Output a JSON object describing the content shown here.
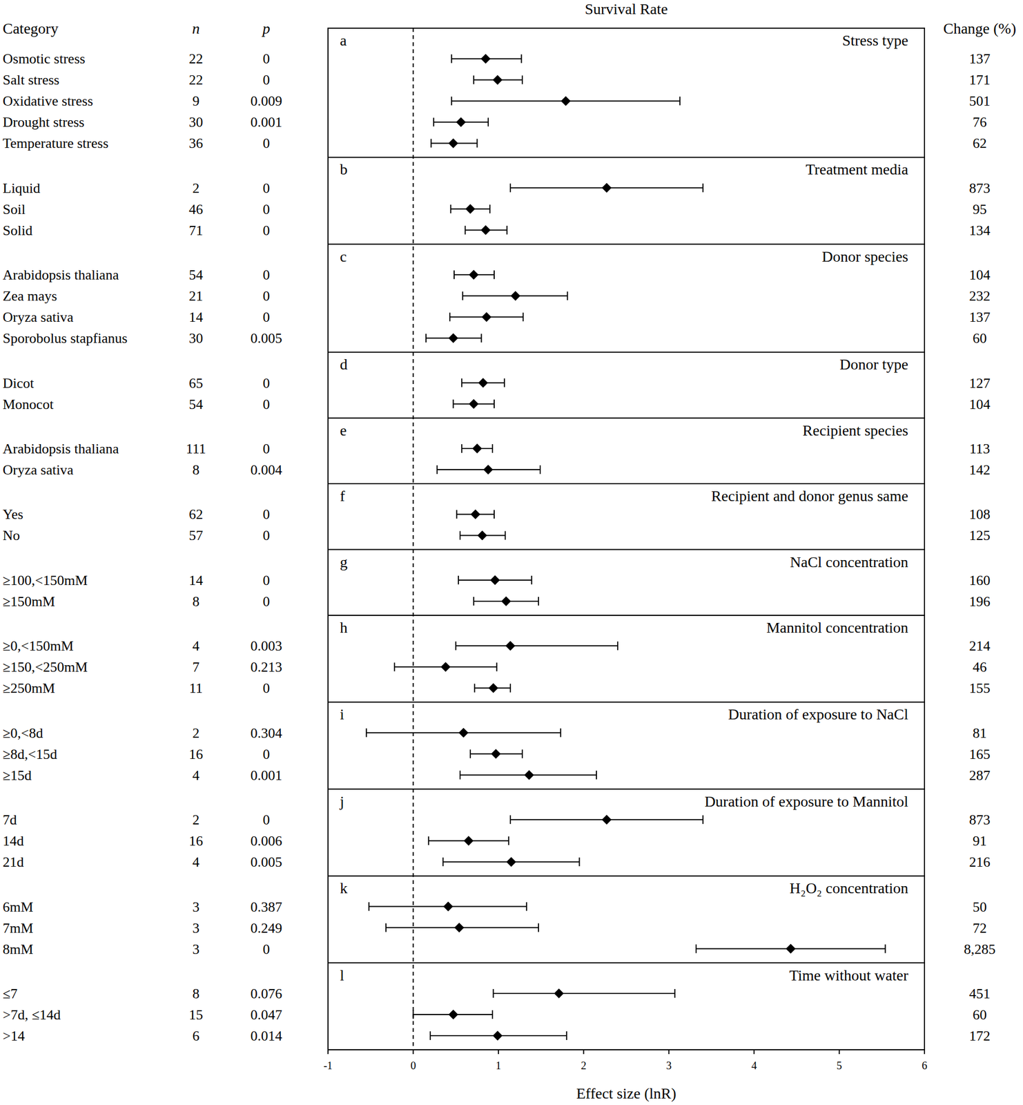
{
  "chart_data": {
    "type": "forest",
    "title": "Survival Rate",
    "x_label": "Effect size (lnR)",
    "columns": {
      "category": "Category",
      "n": "n",
      "p": "p",
      "change": "Change (%)"
    },
    "xlim": [
      -1,
      6
    ],
    "xticks": [
      -1,
      0,
      1,
      2,
      3,
      4,
      5,
      6
    ],
    "reference_line": 0,
    "color": "#000000",
    "marker": "diamond",
    "panels": [
      {
        "letter": "a",
        "title": "Stress type",
        "rows": [
          {
            "category": "Osmotic stress",
            "n": 22,
            "p": 0,
            "value": 0.85,
            "lower": 0.45,
            "upper": 1.27,
            "change": 137
          },
          {
            "category": "Salt stress",
            "n": 22,
            "p": 0,
            "value": 0.99,
            "lower": 0.71,
            "upper": 1.28,
            "change": 171
          },
          {
            "category": "Oxidative stress",
            "n": 9,
            "p": 0.009,
            "value": 1.79,
            "lower": 0.45,
            "upper": 3.13,
            "change": 501
          },
          {
            "category": "Drought stress",
            "n": 30,
            "p": 0.001,
            "value": 0.56,
            "lower": 0.24,
            "upper": 0.88,
            "change": 76
          },
          {
            "category": "Temperature stress",
            "n": 36,
            "p": 0,
            "value": 0.47,
            "lower": 0.21,
            "upper": 0.75,
            "change": 62
          }
        ]
      },
      {
        "letter": "b",
        "title": "Treatment media",
        "rows": [
          {
            "category": "Liquid",
            "n": 2,
            "p": 0,
            "value": 2.27,
            "lower": 1.14,
            "upper": 3.4,
            "change": 873
          },
          {
            "category": "Soil",
            "n": 46,
            "p": 0,
            "value": 0.67,
            "lower": 0.44,
            "upper": 0.9,
            "change": 95
          },
          {
            "category": "Solid",
            "n": 71,
            "p": 0,
            "value": 0.85,
            "lower": 0.61,
            "upper": 1.1,
            "change": 134
          }
        ]
      },
      {
        "letter": "c",
        "title": "Donor species",
        "rows": [
          {
            "category": "Arabidopsis thaliana",
            "n": 54,
            "p": 0,
            "value": 0.71,
            "lower": 0.48,
            "upper": 0.95,
            "change": 104
          },
          {
            "category": "Zea mays",
            "n": 21,
            "p": 0,
            "value": 1.2,
            "lower": 0.58,
            "upper": 1.81,
            "change": 232
          },
          {
            "category": "Oryza sativa",
            "n": 14,
            "p": 0,
            "value": 0.86,
            "lower": 0.43,
            "upper": 1.29,
            "change": 137
          },
          {
            "category": "Sporobolus stapfianus",
            "n": 30,
            "p": 0.005,
            "value": 0.47,
            "lower": 0.15,
            "upper": 0.8,
            "change": 60
          }
        ]
      },
      {
        "letter": "d",
        "title": "Donor type",
        "rows": [
          {
            "category": "Dicot",
            "n": 65,
            "p": 0,
            "value": 0.82,
            "lower": 0.57,
            "upper": 1.07,
            "change": 127
          },
          {
            "category": "Monocot",
            "n": 54,
            "p": 0,
            "value": 0.71,
            "lower": 0.47,
            "upper": 0.95,
            "change": 104
          }
        ]
      },
      {
        "letter": "e",
        "title": "Recipient species",
        "rows": [
          {
            "category": "Arabidopsis thaliana",
            "n": 111,
            "p": 0,
            "value": 0.75,
            "lower": 0.57,
            "upper": 0.93,
            "change": 113
          },
          {
            "category": "Oryza sativa",
            "n": 8,
            "p": 0.004,
            "value": 0.88,
            "lower": 0.28,
            "upper": 1.49,
            "change": 142
          }
        ]
      },
      {
        "letter": "f",
        "title": "Recipient and donor genus same",
        "rows": [
          {
            "category": "Yes",
            "n": 62,
            "p": 0,
            "value": 0.73,
            "lower": 0.51,
            "upper": 0.95,
            "change": 108
          },
          {
            "category": "No",
            "n": 57,
            "p": 0,
            "value": 0.81,
            "lower": 0.55,
            "upper": 1.08,
            "change": 125
          }
        ]
      },
      {
        "letter": "g",
        "title": "NaCl concentration",
        "rows": [
          {
            "category": "≥100,<150mM",
            "n": 14,
            "p": 0,
            "value": 0.96,
            "lower": 0.53,
            "upper": 1.39,
            "change": 160
          },
          {
            "category": "≥150mM",
            "n": 8,
            "p": 0,
            "value": 1.09,
            "lower": 0.71,
            "upper": 1.47,
            "change": 196
          }
        ]
      },
      {
        "letter": "h",
        "title": "Mannitol concentration",
        "rows": [
          {
            "category": "≥0,<150mM",
            "n": 4,
            "p": 0.003,
            "value": 1.14,
            "lower": 0.5,
            "upper": 2.4,
            "change": 214
          },
          {
            "category": "≥150,<250mM",
            "n": 7,
            "p": 0.213,
            "value": 0.38,
            "lower": -0.22,
            "upper": 0.98,
            "change": 46
          },
          {
            "category": "≥250mM",
            "n": 11,
            "p": 0,
            "value": 0.94,
            "lower": 0.72,
            "upper": 1.14,
            "change": 155
          }
        ]
      },
      {
        "letter": "i",
        "title": "Duration of exposure to NaCl",
        "rows": [
          {
            "category": "≥0,<8d",
            "n": 2,
            "p": 0.304,
            "value": 0.59,
            "lower": -0.55,
            "upper": 1.73,
            "change": 81
          },
          {
            "category": "≥8d,<15d",
            "n": 16,
            "p": 0,
            "value": 0.97,
            "lower": 0.67,
            "upper": 1.28,
            "change": 165
          },
          {
            "category": "≥15d",
            "n": 4,
            "p": 0.001,
            "value": 1.36,
            "lower": 0.55,
            "upper": 2.15,
            "change": 287
          }
        ]
      },
      {
        "letter": "j",
        "title": "Duration of exposure to Mannitol",
        "rows": [
          {
            "category": "7d",
            "n": 2,
            "p": 0,
            "value": 2.27,
            "lower": 1.14,
            "upper": 3.4,
            "change": 873
          },
          {
            "category": "14d",
            "n": 16,
            "p": 0.006,
            "value": 0.65,
            "lower": 0.18,
            "upper": 1.12,
            "change": 91
          },
          {
            "category": "21d",
            "n": 4,
            "p": 0.005,
            "value": 1.15,
            "lower": 0.35,
            "upper": 1.95,
            "change": 216
          }
        ]
      },
      {
        "letter": "k",
        "title": "H₂O₂ concentration",
        "rows": [
          {
            "category": "6mM",
            "n": 3,
            "p": 0.387,
            "value": 0.41,
            "lower": -0.52,
            "upper": 1.33,
            "change": 50
          },
          {
            "category": "7mM",
            "n": 3,
            "p": 0.249,
            "value": 0.54,
            "lower": -0.32,
            "upper": 1.47,
            "change": 72
          },
          {
            "category": "8mM",
            "n": 3,
            "p": 0,
            "value": 4.43,
            "lower": 3.32,
            "upper": 5.54,
            "change": 8285,
            "change_label": "8,285"
          }
        ]
      },
      {
        "letter": "l",
        "title": "Time without water",
        "rows": [
          {
            "category": "≤7",
            "n": 8,
            "p": 0.076,
            "value": 1.71,
            "lower": 0.94,
            "upper": 3.07,
            "change": 451
          },
          {
            "category": ">7d, ≤14d",
            "n": 15,
            "p": 0.047,
            "value": 0.47,
            "lower": 0.0,
            "upper": 0.93,
            "change": 60
          },
          {
            "category": ">14",
            "n": 6,
            "p": 0.014,
            "value": 0.99,
            "lower": 0.2,
            "upper": 1.8,
            "change": 172
          }
        ]
      }
    ]
  }
}
